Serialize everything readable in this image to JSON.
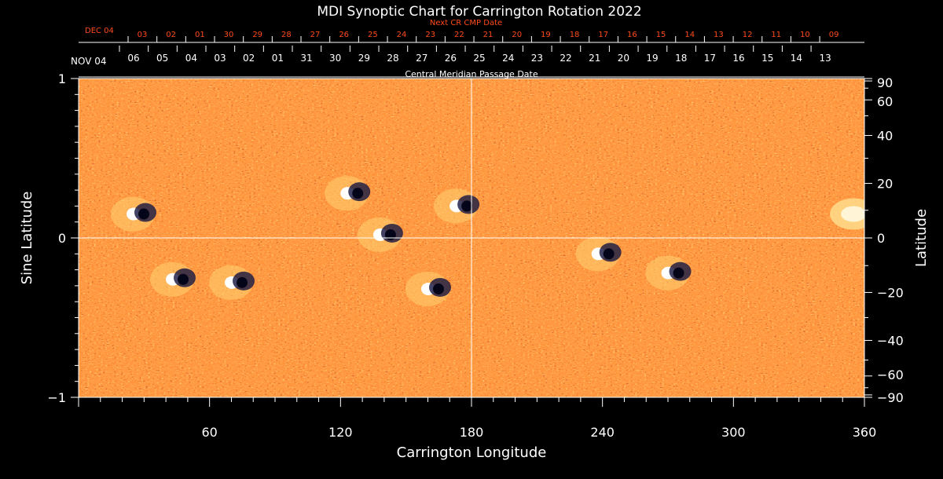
{
  "chart_data": {
    "type": "heatmap",
    "title": "MDI Synoptic Chart for Carrington Rotation 2022",
    "xlabel": "Carrington Longitude",
    "ylabel_left": "Sine Latitude",
    "ylabel_right": "Latitude",
    "xlim": [
      0,
      360
    ],
    "ylim": [
      -1,
      1
    ],
    "x_ticks": [
      60,
      120,
      180,
      240,
      300,
      360
    ],
    "y_ticks_left": [
      {
        "value": 1,
        "label": "1"
      },
      {
        "value": 0,
        "label": "0"
      },
      {
        "value": -1,
        "label": "−1"
      }
    ],
    "lat_ticks_right": [
      {
        "deg": 90,
        "label": "90"
      },
      {
        "deg": 60,
        "label": "60"
      },
      {
        "deg": 40,
        "label": "40"
      },
      {
        "deg": 20,
        "label": "20"
      },
      {
        "deg": 0,
        "label": "0"
      },
      {
        "deg": -20,
        "label": "−20"
      },
      {
        "deg": -40,
        "label": "−40"
      },
      {
        "deg": -60,
        "label": "−60"
      },
      {
        "deg": -90,
        "label": "−90"
      }
    ],
    "cmp_axis": {
      "label": "Central Meridian Passage Date",
      "month_label": "NOV 04",
      "day_labels": [
        "06",
        "05",
        "04",
        "03",
        "02",
        "01",
        "31",
        "30",
        "29",
        "28",
        "27",
        "26",
        "25",
        "24",
        "23",
        "22",
        "21",
        "20",
        "19",
        "18",
        "17",
        "16",
        "15",
        "14",
        "13"
      ]
    },
    "next_cmp_axis": {
      "label": "Next CR CMP Date",
      "month_label": "DEC 04",
      "day_labels": [
        "03",
        "02",
        "01",
        "30",
        "29",
        "28",
        "27",
        "26",
        "25",
        "24",
        "23",
        "22",
        "21",
        "20",
        "19",
        "18",
        "17",
        "16",
        "15",
        "14",
        "13",
        "12",
        "11",
        "10",
        "09"
      ]
    },
    "colormap": [
      "#10103a",
      "#b22a10",
      "#ff5a12",
      "#ffd060",
      "#ffffff"
    ],
    "magnetic_regions": [
      {
        "lon": 27,
        "sinlat": 0.15,
        "polarity": "mixed"
      },
      {
        "lon": 45,
        "sinlat": -0.26,
        "polarity": "mixed"
      },
      {
        "lon": 72,
        "sinlat": -0.28,
        "polarity": "mixed"
      },
      {
        "lon": 125,
        "sinlat": 0.28,
        "polarity": "mixed"
      },
      {
        "lon": 140,
        "sinlat": 0.02,
        "polarity": "mixed"
      },
      {
        "lon": 162,
        "sinlat": -0.32,
        "polarity": "mixed"
      },
      {
        "lon": 175,
        "sinlat": 0.2,
        "polarity": "mixed"
      },
      {
        "lon": 240,
        "sinlat": -0.1,
        "polarity": "mixed"
      },
      {
        "lon": 272,
        "sinlat": -0.22,
        "polarity": "mixed"
      },
      {
        "lon": 355,
        "sinlat": 0.15,
        "polarity": "positive"
      }
    ]
  }
}
